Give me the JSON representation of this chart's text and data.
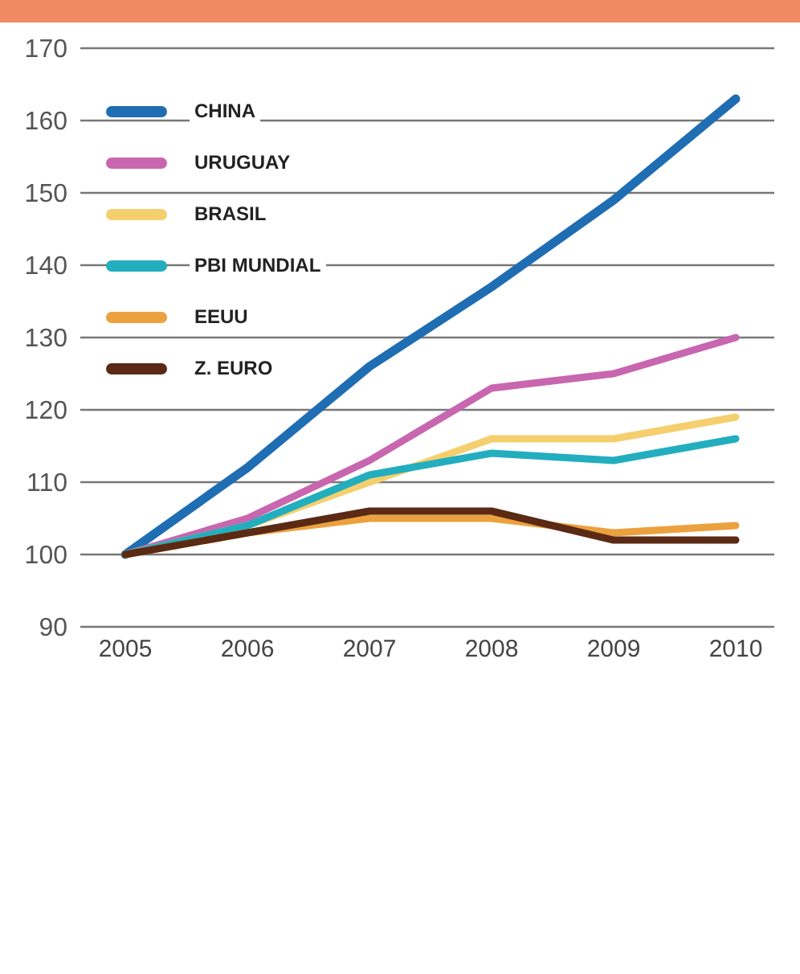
{
  "chart_data": {
    "type": "line",
    "categories": [
      "2005",
      "2006",
      "2007",
      "2008",
      "2009",
      "2010"
    ],
    "series": [
      {
        "name": "CHINA",
        "color": "#1f6db3",
        "values": [
          100,
          112,
          126,
          137,
          149,
          163
        ]
      },
      {
        "name": "URUGUAY",
        "color": "#c866b0",
        "values": [
          100,
          105,
          113,
          123,
          125,
          130
        ]
      },
      {
        "name": "BRASIL",
        "color": "#f5cf6e",
        "values": [
          100,
          104,
          110,
          116,
          116,
          119
        ]
      },
      {
        "name": "PBI  MUNDIAL",
        "color": "#22aebf",
        "values": [
          100,
          104,
          111,
          114,
          113,
          116
        ]
      },
      {
        "name": "EEUU",
        "color": "#eba13d",
        "values": [
          100,
          103,
          105,
          105,
          103,
          104
        ]
      },
      {
        "name": "Z. EURO",
        "color": "#5a2a14",
        "values": [
          100,
          103,
          106,
          106,
          102,
          102
        ]
      }
    ],
    "ylim": [
      90,
      170
    ],
    "yticks": [
      90,
      100,
      110,
      120,
      130,
      140,
      150,
      160,
      170
    ],
    "grid": "y",
    "legend": "top left",
    "marker": "none",
    "line_style": "solid"
  }
}
